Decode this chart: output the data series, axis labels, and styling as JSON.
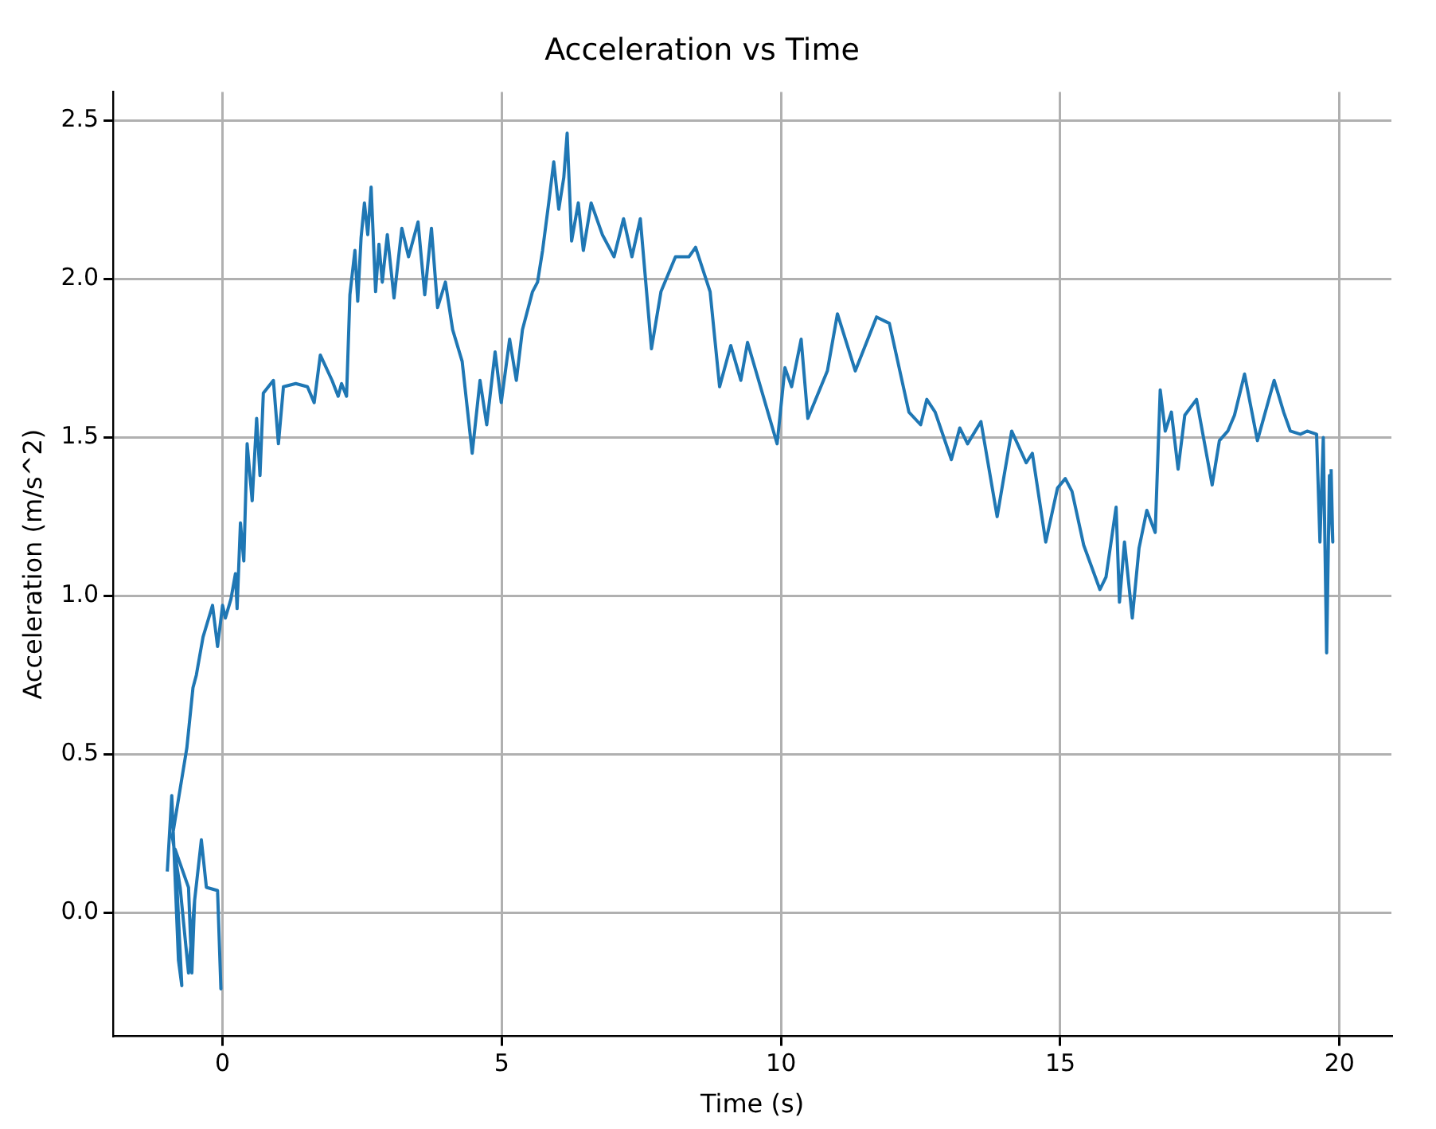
{
  "chart_data": {
    "type": "line",
    "title": "Acceleration vs Time",
    "xlabel": "Time (s)",
    "ylabel": "Acceleration (m/s^2)",
    "xlim": [
      -1.96,
      20.93
    ],
    "xticks": [
      0,
      5,
      10,
      15,
      20
    ],
    "ylim": [
      -0.39,
      2.59
    ],
    "yticks": [
      {
        "value": 0,
        "label": "0.0"
      },
      {
        "value": 0.5,
        "label": "0.5"
      },
      {
        "value": 1,
        "label": "1.0"
      },
      {
        "value": 1.5,
        "label": "1.5"
      },
      {
        "value": 2,
        "label": "2.0"
      },
      {
        "value": 2.5,
        "label": "2.5"
      }
    ],
    "grid": true,
    "legend": false,
    "marker": "none",
    "line_style": "solid",
    "series": [
      {
        "color": "#1f77b4",
        "x": [
          -0.99,
          -0.91,
          -0.79,
          -0.73,
          -0.85,
          -0.61,
          -0.55,
          -0.5,
          -0.38,
          -0.29,
          -0.09,
          -0.03,
          -0.03,
          -0.09,
          -0.29,
          -0.38,
          -0.5,
          -0.61,
          -0.76,
          -0.9,
          -0.64,
          -0.53,
          -0.47,
          -0.35,
          -0.18,
          -0.09,
          0.0,
          0.05,
          0.15,
          0.23,
          0.26,
          0.32,
          0.38,
          0.44,
          0.53,
          0.61,
          0.67,
          0.73,
          0.91,
          1.0,
          1.09,
          1.31,
          1.52,
          1.64,
          1.75,
          1.96,
          2.07,
          2.13,
          2.22,
          2.28,
          2.37,
          2.42,
          2.48,
          2.54,
          2.6,
          2.66,
          2.74,
          2.8,
          2.86,
          2.95,
          3.07,
          3.21,
          3.33,
          3.5,
          3.62,
          3.74,
          3.85,
          3.99,
          4.12,
          4.29,
          4.47,
          4.61,
          4.73,
          4.88,
          4.99,
          5.14,
          5.26,
          5.37,
          5.55,
          5.64,
          5.73,
          5.84,
          5.93,
          6.02,
          6.11,
          6.17,
          6.25,
          6.37,
          6.46,
          6.6,
          6.8,
          7.01,
          7.18,
          7.33,
          7.48,
          7.68,
          7.85,
          8.11,
          8.35,
          8.47,
          8.73,
          8.9,
          9.1,
          9.28,
          9.4,
          9.93,
          10.07,
          10.19,
          10.36,
          10.48,
          10.83,
          11.01,
          11.33,
          11.71,
          11.94,
          12.29,
          12.5,
          12.61,
          12.76,
          13.05,
          13.2,
          13.34,
          13.58,
          13.87,
          14.13,
          14.39,
          14.5,
          14.74,
          14.95,
          15.09,
          15.21,
          15.42,
          15.71,
          15.82,
          16.0,
          16.06,
          16.15,
          16.29,
          16.41,
          16.55,
          16.7,
          16.79,
          16.88,
          16.99,
          17.11,
          17.23,
          17.44,
          17.72,
          17.85,
          18.0,
          18.12,
          18.3,
          18.53,
          18.83,
          19.0,
          19.12,
          19.3,
          19.42,
          19.59,
          19.65,
          19.71,
          19.77,
          19.82,
          19.88,
          19.85
        ],
        "values": [
          0.13,
          0.37,
          -0.15,
          -0.23,
          0.2,
          0.08,
          -0.19,
          0.04,
          0.23,
          0.08,
          0.07,
          -0.24,
          -0.24,
          0.07,
          0.08,
          0.23,
          0.04,
          -0.19,
          0.08,
          0.24,
          0.52,
          0.71,
          0.75,
          0.87,
          0.97,
          0.84,
          0.97,
          0.93,
          0.99,
          1.07,
          0.96,
          1.23,
          1.11,
          1.48,
          1.3,
          1.56,
          1.38,
          1.64,
          1.68,
          1.48,
          1.66,
          1.67,
          1.66,
          1.61,
          1.76,
          1.68,
          1.63,
          1.67,
          1.63,
          1.95,
          2.09,
          1.93,
          2.13,
          2.24,
          2.14,
          2.29,
          1.96,
          2.11,
          1.99,
          2.14,
          1.94,
          2.16,
          2.07,
          2.18,
          1.95,
          2.16,
          1.91,
          1.99,
          1.84,
          1.74,
          1.45,
          1.68,
          1.54,
          1.77,
          1.61,
          1.81,
          1.68,
          1.84,
          1.96,
          1.99,
          2.09,
          2.24,
          2.37,
          2.22,
          2.32,
          2.46,
          2.12,
          2.24,
          2.09,
          2.24,
          2.14,
          2.07,
          2.19,
          2.07,
          2.19,
          1.78,
          1.96,
          2.07,
          2.07,
          2.1,
          1.96,
          1.66,
          1.79,
          1.68,
          1.8,
          1.48,
          1.72,
          1.66,
          1.81,
          1.56,
          1.71,
          1.89,
          1.71,
          1.88,
          1.86,
          1.58,
          1.54,
          1.62,
          1.58,
          1.43,
          1.53,
          1.48,
          1.55,
          1.25,
          1.52,
          1.42,
          1.45,
          1.17,
          1.34,
          1.37,
          1.33,
          1.16,
          1.02,
          1.06,
          1.28,
          0.98,
          1.17,
          0.93,
          1.15,
          1.27,
          1.2,
          1.65,
          1.52,
          1.58,
          1.4,
          1.57,
          1.62,
          1.35,
          1.49,
          1.52,
          1.57,
          1.7,
          1.49,
          1.68,
          1.58,
          1.52,
          1.51,
          1.52,
          1.51,
          1.17,
          1.5,
          0.82,
          1.38,
          1.17,
          1.4
        ]
      }
    ]
  }
}
